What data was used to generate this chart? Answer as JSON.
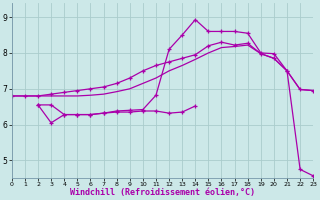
{
  "background_color": "#cce8e8",
  "grid_color": "#aacccc",
  "line_color": "#aa00aa",
  "marker": "+",
  "marker_size": 3,
  "line_width": 0.9,
  "xlabel": "Windchill (Refroidissement éolien,°C)",
  "xlabel_fontsize": 6,
  "ylabel_ticks": [
    5,
    6,
    7,
    8,
    9
  ],
  "xtick_labels": [
    "0",
    "1",
    "2",
    "3",
    "4",
    "5",
    "6",
    "7",
    "8",
    "9",
    "10",
    "11",
    "12",
    "13",
    "14",
    "15",
    "16",
    "17",
    "18",
    "19",
    "20",
    "21",
    "22",
    "23"
  ],
  "xlim": [
    0,
    23
  ],
  "ylim": [
    4.5,
    9.4
  ],
  "series1_x": [
    0,
    1,
    2,
    3,
    4,
    5,
    6,
    7,
    8,
    9,
    10,
    11,
    12,
    13,
    14,
    15,
    16,
    17,
    18,
    19,
    20,
    21,
    22,
    23
  ],
  "series1_y": [
    6.8,
    6.8,
    6.8,
    6.85,
    6.9,
    6.95,
    7.0,
    7.05,
    7.15,
    7.3,
    7.5,
    7.65,
    7.75,
    7.85,
    7.95,
    8.2,
    8.3,
    8.22,
    8.27,
    7.98,
    7.85,
    7.5,
    6.98,
    6.95
  ],
  "series2_x": [
    0,
    1,
    2,
    3,
    4,
    5,
    6,
    7,
    8,
    9,
    10,
    11,
    12,
    13,
    14,
    15,
    16,
    17,
    18,
    19,
    20,
    21,
    22,
    23
  ],
  "series2_y": [
    6.8,
    6.8,
    6.8,
    6.8,
    6.8,
    6.8,
    6.82,
    6.85,
    6.92,
    7.0,
    7.15,
    7.3,
    7.5,
    7.65,
    7.82,
    8.0,
    8.15,
    8.18,
    8.22,
    7.98,
    7.85,
    7.5,
    6.98,
    6.95
  ],
  "series3_x": [
    2,
    3,
    4,
    5,
    6,
    7,
    8,
    9,
    10,
    11,
    12,
    13,
    14,
    15,
    16,
    17,
    18,
    19,
    20,
    21,
    22,
    23
  ],
  "series3_y": [
    6.55,
    6.05,
    6.28,
    6.28,
    6.28,
    6.32,
    6.38,
    6.4,
    6.42,
    6.82,
    8.1,
    8.5,
    8.93,
    8.6,
    8.6,
    8.6,
    8.55,
    8.0,
    7.98,
    7.5,
    4.75,
    4.57
  ],
  "series4_x": [
    2,
    3,
    4,
    5,
    6,
    7,
    8,
    9,
    10,
    11,
    12,
    13,
    14
  ],
  "series4_y": [
    6.55,
    6.55,
    6.28,
    6.28,
    6.28,
    6.32,
    6.35,
    6.35,
    6.38,
    6.38,
    6.32,
    6.35,
    6.52
  ],
  "series5_x": [
    2,
    3,
    23
  ],
  "series5_y": [
    6.55,
    6.05,
    4.57
  ]
}
